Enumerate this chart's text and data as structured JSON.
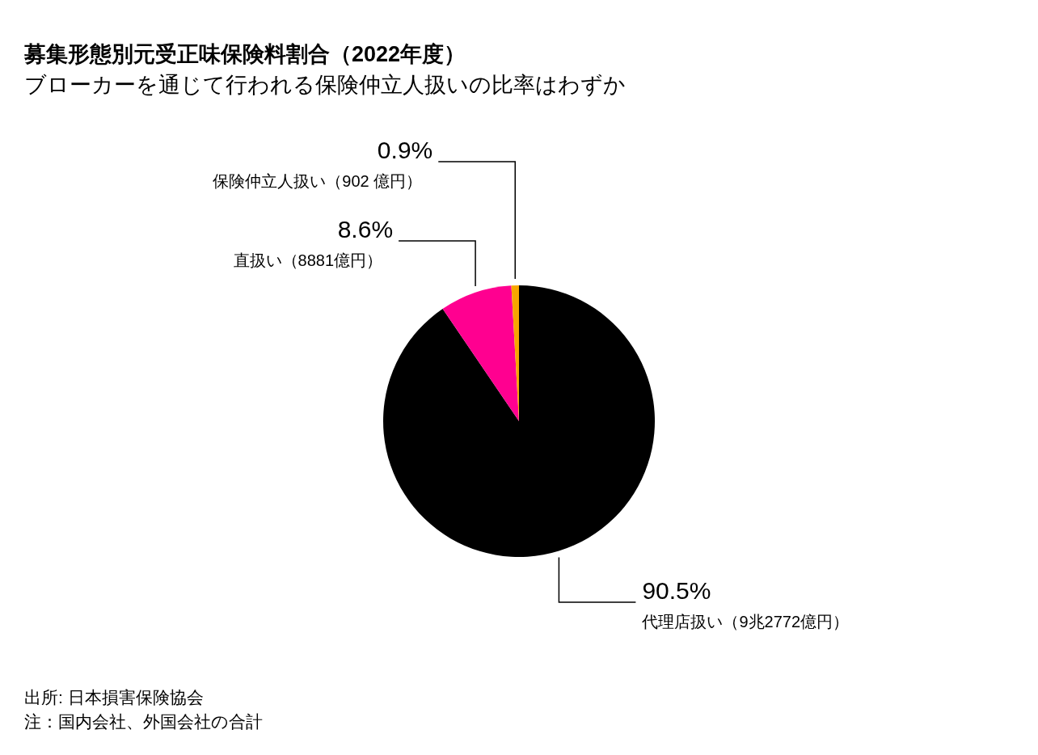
{
  "chart_data": {
    "type": "pie",
    "title": "募集形態別元受正味保険料割合（2022年度）",
    "subtitle": "ブローカーを通じて行われる保険仲立人扱いの比率はわずか",
    "categories": [
      "代理店扱い（9兆2772億円）",
      "直扱い（8881億円）",
      "保険仲立人扱い（902 億円）"
    ],
    "values": [
      90.5,
      8.6,
      0.9
    ],
    "colors": [
      "#000000",
      "#ff0090",
      "#f7a600"
    ],
    "value_labels": [
      "90.5%",
      "8.6%",
      "0.9%"
    ],
    "annotations": [
      "出所: 日本損害保険協会",
      "注：国内会社、外国会社の合計"
    ]
  }
}
